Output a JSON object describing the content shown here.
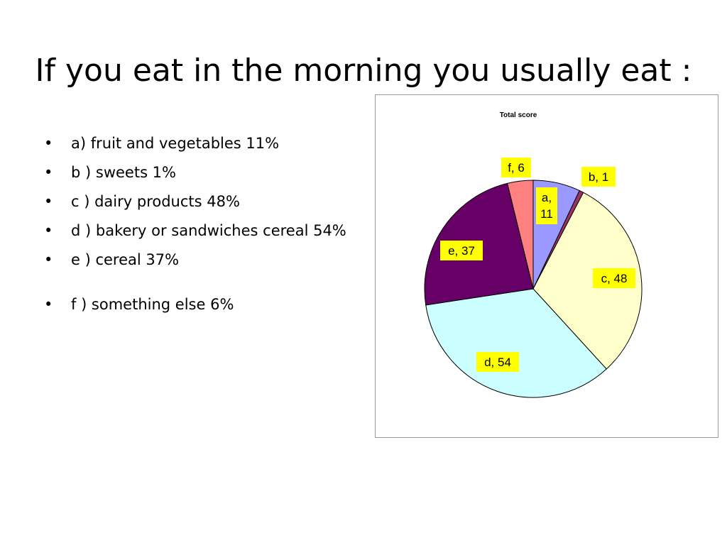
{
  "slide": {
    "title": "If you eat in the morning you usually eat :",
    "bullets": [
      "a) fruit and vegetables 11%",
      "b ) sweets 1%",
      "c ) dairy products 48%",
      "d ) bakery or sandwiches cereal 54%",
      "e ) cereal 37%",
      "f ) something else  6%"
    ],
    "bullet_symbol": "•"
  },
  "chart_data": {
    "type": "pie",
    "title": "Total score",
    "slices": [
      {
        "category": "a",
        "value": 11,
        "label": "a, 11",
        "color": "#9999ff"
      },
      {
        "category": "b",
        "value": 1,
        "label": "b, 1",
        "color": "#993366"
      },
      {
        "category": "c",
        "value": 48,
        "label": "c, 48",
        "color": "#ffffcc"
      },
      {
        "category": "d",
        "value": 54,
        "label": "d, 54",
        "color": "#ccffff"
      },
      {
        "category": "e",
        "value": 37,
        "label": "e, 37",
        "color": "#660066"
      },
      {
        "category": "f",
        "value": 6,
        "label": "f, 6",
        "color": "#ff8080"
      }
    ],
    "label_background": "#ffff00",
    "start_angle": "12 o'clock",
    "direction": "clockwise",
    "legend": "none"
  }
}
